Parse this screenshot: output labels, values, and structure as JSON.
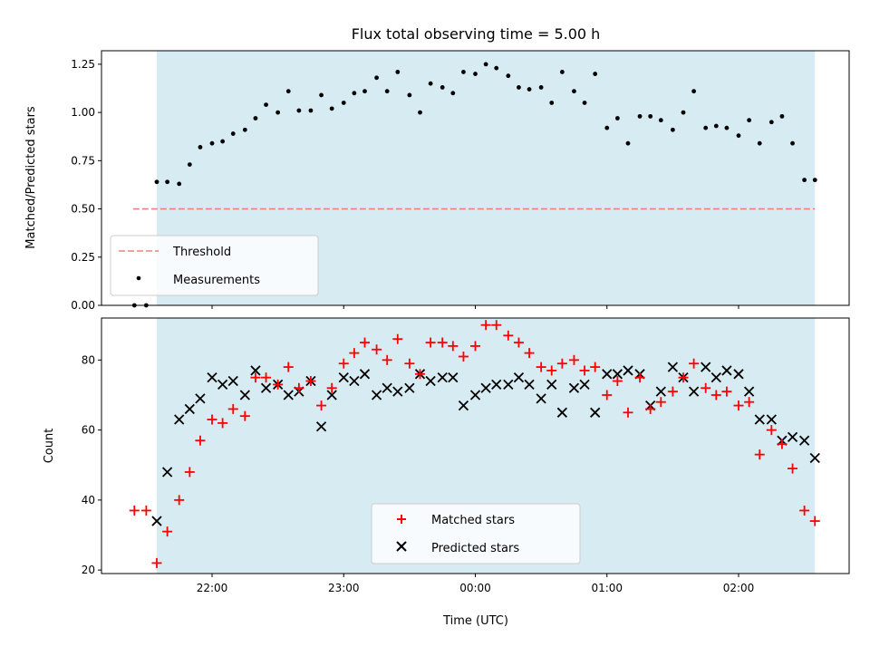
{
  "chart_data": [
    {
      "type": "scatter",
      "title": "Flux total observing time = 5.00 h",
      "xlabel": "",
      "ylabel": "Matched/Predicted stars",
      "ylim": [
        0,
        1.32
      ],
      "yticks": [
        "0.00",
        "0.25",
        "0.50",
        "0.75",
        "1.00",
        "1.25"
      ],
      "ytick_values": [
        0,
        0.25,
        0.5,
        0.75,
        1.0,
        1.25
      ],
      "xlim_hours": [
        -2.84,
        2.84
      ],
      "shaded_span_hours": [
        -2.42,
        2.58
      ],
      "threshold": {
        "name": "Threshold",
        "value": 0.5,
        "x_start_hours": -2.6,
        "x_end_hours": 2.58,
        "color": "#f08080"
      },
      "legend": [
        "Threshold",
        "Measurements"
      ],
      "legend_placement": "lower-left",
      "series": [
        {
          "name": "Measurements",
          "color": "#000000",
          "x_hours": [
            -2.59,
            -2.5,
            -2.42,
            -2.34,
            -2.25,
            -2.17,
            -2.09,
            -2.0,
            -1.92,
            -1.84,
            -1.75,
            -1.67,
            -1.59,
            -1.5,
            -1.42,
            -1.34,
            -1.25,
            -1.17,
            -1.09,
            -1.0,
            -0.92,
            -0.84,
            -0.75,
            -0.67,
            -0.59,
            -0.5,
            -0.42,
            -0.34,
            -0.25,
            -0.17,
            -0.09,
            0.0,
            0.08,
            0.16,
            0.25,
            0.33,
            0.41,
            0.5,
            0.58,
            0.66,
            0.75,
            0.83,
            0.91,
            1.0,
            1.08,
            1.16,
            1.25,
            1.33,
            1.41,
            1.5,
            1.58,
            1.66,
            1.75,
            1.83,
            1.91,
            2.0,
            2.08,
            2.16,
            2.25,
            2.33,
            2.41,
            2.5,
            2.58
          ],
          "values": [
            0.0,
            0.0,
            0.64,
            0.64,
            0.63,
            0.73,
            0.82,
            0.84,
            0.85,
            0.89,
            0.91,
            0.97,
            1.04,
            1.0,
            1.11,
            1.01,
            1.01,
            1.09,
            1.02,
            1.05,
            1.1,
            1.11,
            1.18,
            1.11,
            1.21,
            1.09,
            1.0,
            1.15,
            1.13,
            1.1,
            1.21,
            1.2,
            1.25,
            1.23,
            1.19,
            1.13,
            1.12,
            1.13,
            1.05,
            1.21,
            1.11,
            1.05,
            1.2,
            0.92,
            0.97,
            0.84,
            0.98,
            0.98,
            0.96,
            0.91,
            1.0,
            1.11,
            0.92,
            0.93,
            0.92,
            0.88,
            0.96,
            0.84,
            0.95,
            0.98,
            0.84,
            0.65,
            0.65
          ]
        }
      ]
    },
    {
      "type": "scatter",
      "title": "",
      "xlabel": "Time (UTC)",
      "ylabel": "Count",
      "ylim": [
        19,
        92
      ],
      "yticks": [
        "20",
        "40",
        "60",
        "80"
      ],
      "ytick_values": [
        20,
        40,
        60,
        80
      ],
      "xlim_hours": [
        -2.84,
        2.84
      ],
      "xticks": [
        "22:00",
        "23:00",
        "00:00",
        "01:00",
        "02:00"
      ],
      "xtick_hours": [
        -2,
        -1,
        0,
        1,
        2
      ],
      "shaded_span_hours": [
        -2.42,
        2.58
      ],
      "legend": [
        "Matched stars",
        "Predicted stars"
      ],
      "legend_placement": "lower-center",
      "series": [
        {
          "name": "Matched stars",
          "marker": "+",
          "color": "#ff0000",
          "x_hours": [
            -2.59,
            -2.5,
            -2.42,
            -2.34,
            -2.25,
            -2.17,
            -2.09,
            -2.0,
            -1.92,
            -1.84,
            -1.75,
            -1.67,
            -1.59,
            -1.5,
            -1.42,
            -1.34,
            -1.25,
            -1.17,
            -1.09,
            -1.0,
            -0.92,
            -0.84,
            -0.75,
            -0.67,
            -0.59,
            -0.5,
            -0.42,
            -0.34,
            -0.25,
            -0.17,
            -0.09,
            0.0,
            0.08,
            0.16,
            0.25,
            0.33,
            0.41,
            0.5,
            0.58,
            0.66,
            0.75,
            0.83,
            0.91,
            1.0,
            1.08,
            1.16,
            1.25,
            1.33,
            1.41,
            1.5,
            1.58,
            1.66,
            1.75,
            1.83,
            1.91,
            2.0,
            2.08,
            2.16,
            2.25,
            2.33,
            2.41,
            2.5,
            2.58
          ],
          "values": [
            37,
            37,
            22,
            31,
            40,
            48,
            57,
            63,
            62,
            66,
            64,
            75,
            75,
            73,
            78,
            72,
            74,
            67,
            72,
            79,
            82,
            85,
            83,
            80,
            86,
            79,
            76,
            85,
            85,
            84,
            81,
            84,
            90,
            90,
            87,
            85,
            82,
            78,
            77,
            79,
            80,
            77,
            78,
            70,
            74,
            65,
            75,
            66,
            68,
            71,
            75,
            79,
            72,
            70,
            71,
            67,
            68,
            53,
            60,
            56,
            49,
            37,
            34
          ]
        },
        {
          "name": "Predicted stars",
          "marker": "x",
          "color": "#000000",
          "x_hours": [
            -2.42,
            -2.34,
            -2.25,
            -2.17,
            -2.09,
            -2.0,
            -1.92,
            -1.84,
            -1.75,
            -1.67,
            -1.59,
            -1.5,
            -1.42,
            -1.34,
            -1.25,
            -1.17,
            -1.09,
            -1.0,
            -0.92,
            -0.84,
            -0.75,
            -0.67,
            -0.59,
            -0.5,
            -0.42,
            -0.34,
            -0.25,
            -0.17,
            -0.09,
            0.0,
            0.08,
            0.16,
            0.25,
            0.33,
            0.41,
            0.5,
            0.58,
            0.66,
            0.75,
            0.83,
            0.91,
            1.0,
            1.08,
            1.16,
            1.25,
            1.33,
            1.41,
            1.5,
            1.58,
            1.66,
            1.75,
            1.83,
            1.91,
            2.0,
            2.08,
            2.16,
            2.25,
            2.33,
            2.41,
            2.5,
            2.58
          ],
          "values": [
            34,
            48,
            63,
            66,
            69,
            75,
            73,
            74,
            70,
            77,
            72,
            73,
            70,
            71,
            74,
            61,
            70,
            75,
            74,
            76,
            70,
            72,
            71,
            72,
            76,
            74,
            75,
            75,
            67,
            70,
            72,
            73,
            73,
            75,
            73,
            69,
            73,
            65,
            72,
            73,
            65,
            76,
            76,
            77,
            76,
            67,
            71,
            78,
            75,
            71,
            78,
            75,
            77,
            76,
            71,
            63,
            63,
            57,
            58,
            57,
            52
          ]
        }
      ]
    }
  ]
}
